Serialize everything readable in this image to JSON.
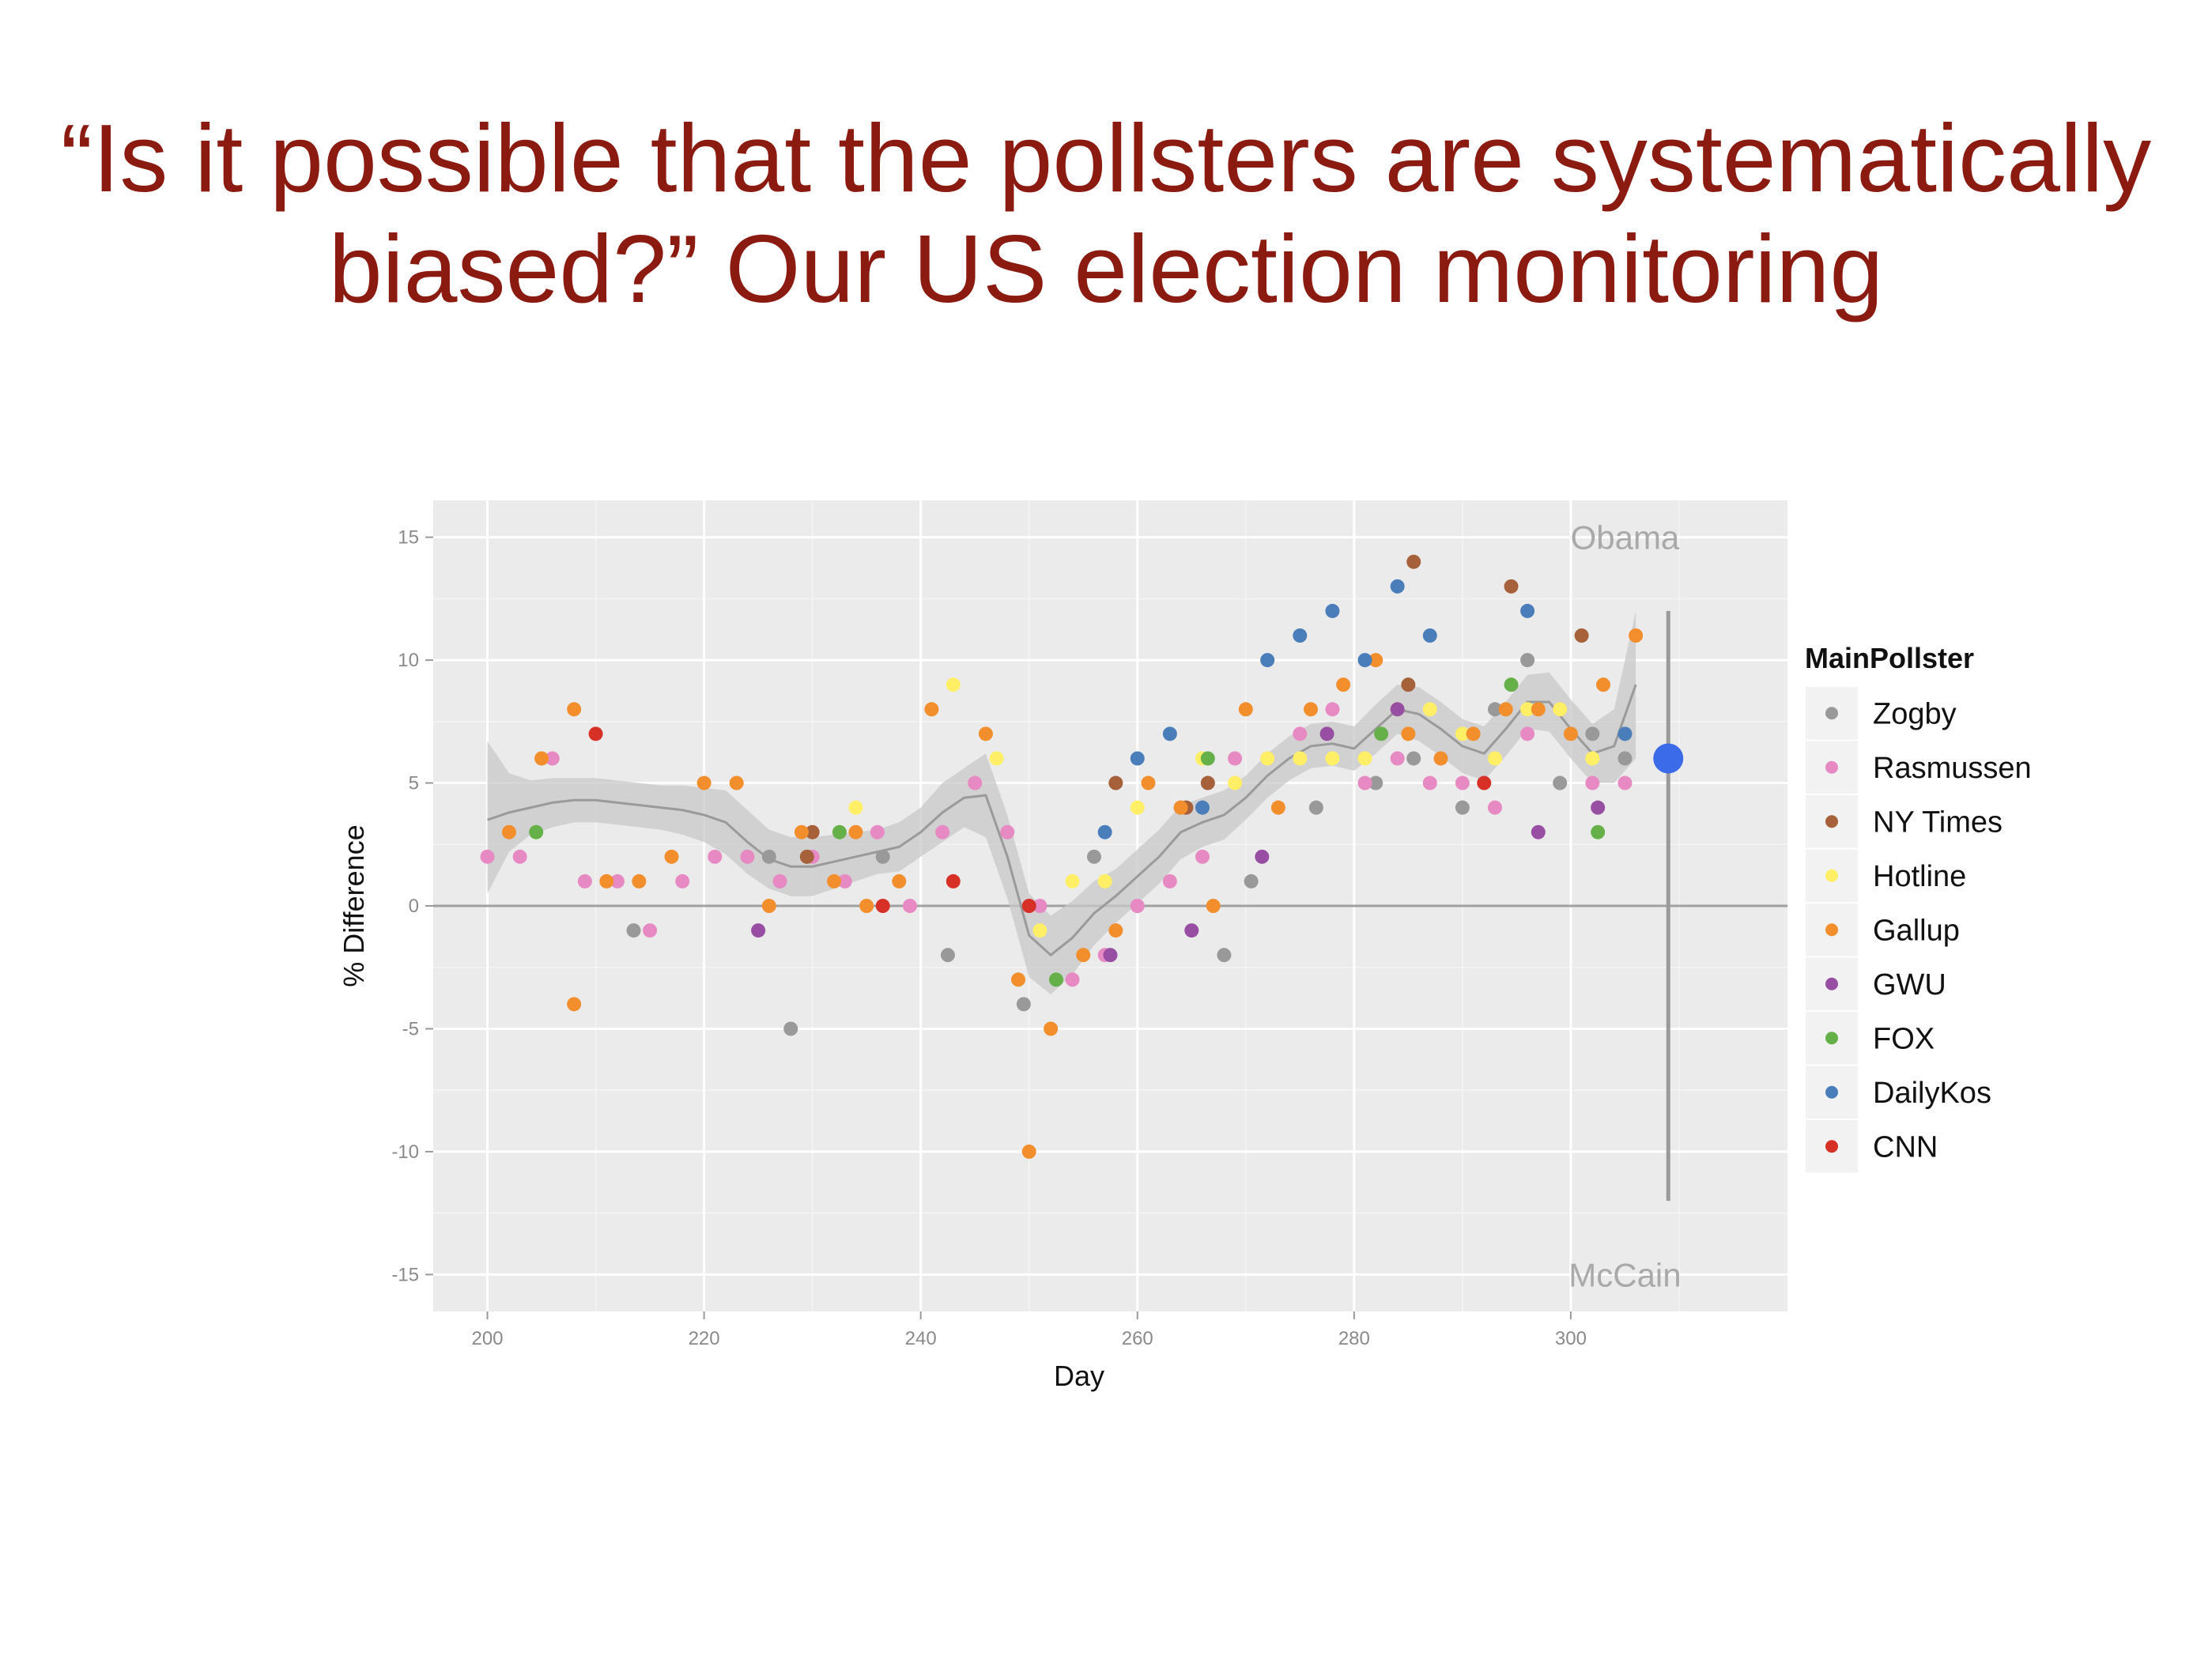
{
  "slide": {
    "title_line1": "“Is it possible that the pollsters are systematically",
    "title_line2": "biased?” Our US election monitoring"
  },
  "chart_data": {
    "type": "scatter",
    "xlabel": "Day",
    "ylabel": "% Difference",
    "xlim": [
      195,
      320
    ],
    "ylim": [
      -16.5,
      16.5
    ],
    "xticks": [
      200,
      220,
      240,
      260,
      280,
      300
    ],
    "yticks": [
      15,
      10,
      5,
      0,
      -5,
      -10,
      -15
    ],
    "grid": true,
    "legend_title": "MainPollster",
    "legend_position": "right",
    "annotations": [
      {
        "text": "Obama",
        "x": 305,
        "y": 15
      },
      {
        "text": "McCain",
        "x": 305,
        "y": -15
      }
    ],
    "series": [
      {
        "name": "Zogby",
        "color": "#999999",
        "points": [
          [
            213.5,
            -1
          ],
          [
            226,
            2
          ],
          [
            228,
            -5
          ],
          [
            236.5,
            2
          ],
          [
            242.5,
            -2
          ],
          [
            249.5,
            -4
          ],
          [
            256,
            2
          ],
          [
            264,
            4
          ],
          [
            268,
            -2
          ],
          [
            270.5,
            1
          ],
          [
            276.5,
            4
          ],
          [
            282,
            5
          ],
          [
            285.5,
            6
          ],
          [
            290,
            4
          ],
          [
            293,
            8
          ],
          [
            296,
            10
          ],
          [
            299,
            5
          ],
          [
            302,
            7
          ],
          [
            305,
            6
          ]
        ]
      },
      {
        "name": "Rasmussen",
        "color": "#e78ac3",
        "points": [
          [
            200,
            2
          ],
          [
            203,
            2
          ],
          [
            206,
            6
          ],
          [
            209,
            1
          ],
          [
            212,
            1
          ],
          [
            215,
            -1
          ],
          [
            218,
            1
          ],
          [
            221,
            2
          ],
          [
            224,
            2
          ],
          [
            227,
            1
          ],
          [
            230,
            2
          ],
          [
            233,
            1
          ],
          [
            236,
            3
          ],
          [
            239,
            0
          ],
          [
            242,
            3
          ],
          [
            245,
            5
          ],
          [
            248,
            3
          ],
          [
            251,
            0
          ],
          [
            254,
            -3
          ],
          [
            257,
            -2
          ],
          [
            260,
            0
          ],
          [
            263,
            1
          ],
          [
            266,
            2
          ],
          [
            269,
            6
          ],
          [
            272,
            6
          ],
          [
            275,
            7
          ],
          [
            278,
            8
          ],
          [
            281,
            5
          ],
          [
            284,
            6
          ],
          [
            287,
            5
          ],
          [
            290,
            5
          ],
          [
            293,
            4
          ],
          [
            296,
            7
          ],
          [
            299,
            8
          ],
          [
            302,
            5
          ],
          [
            305,
            5
          ]
        ]
      },
      {
        "name": "NY Times",
        "color": "#a6603a",
        "points": [
          [
            229.5,
            2
          ],
          [
            230,
            3
          ],
          [
            258,
            5
          ],
          [
            264.5,
            4
          ],
          [
            266.5,
            5
          ],
          [
            285,
            9
          ],
          [
            285.5,
            14
          ],
          [
            294.5,
            13
          ],
          [
            301,
            11
          ]
        ]
      },
      {
        "name": "Hotline",
        "color": "#ffef66",
        "points": [
          [
            234,
            4
          ],
          [
            243,
            9
          ],
          [
            247,
            6
          ],
          [
            251,
            -1
          ],
          [
            254,
            1
          ],
          [
            257,
            1
          ],
          [
            260,
            4
          ],
          [
            266,
            6
          ],
          [
            269,
            5
          ],
          [
            272,
            6
          ],
          [
            275,
            6
          ],
          [
            278,
            6
          ],
          [
            281,
            6
          ],
          [
            284,
            8
          ],
          [
            287,
            8
          ],
          [
            290,
            7
          ],
          [
            293,
            6
          ],
          [
            296,
            8
          ],
          [
            299,
            8
          ],
          [
            302,
            6
          ]
        ]
      },
      {
        "name": "Gallup",
        "color": "#f28e2b",
        "points": [
          [
            202,
            3
          ],
          [
            205,
            6
          ],
          [
            208,
            8
          ],
          [
            208,
            -4
          ],
          [
            211,
            1
          ],
          [
            214,
            1
          ],
          [
            217,
            2
          ],
          [
            220,
            5
          ],
          [
            223,
            5
          ],
          [
            226,
            0
          ],
          [
            229,
            3
          ],
          [
            232,
            1
          ],
          [
            234,
            3
          ],
          [
            235,
            0
          ],
          [
            238,
            1
          ],
          [
            241,
            8
          ],
          [
            246,
            7
          ],
          [
            249,
            -3
          ],
          [
            250,
            -10
          ],
          [
            252,
            -5
          ],
          [
            255,
            -2
          ],
          [
            258,
            -1
          ],
          [
            261,
            5
          ],
          [
            264,
            4
          ],
          [
            267,
            0
          ],
          [
            270,
            8
          ],
          [
            273,
            4
          ],
          [
            276,
            8
          ],
          [
            279,
            9
          ],
          [
            282,
            10
          ],
          [
            285,
            7
          ],
          [
            288,
            6
          ],
          [
            291,
            7
          ],
          [
            294,
            8
          ],
          [
            297,
            8
          ],
          [
            300,
            7
          ],
          [
            303,
            9
          ],
          [
            306,
            11
          ]
        ]
      },
      {
        "name": "GWU",
        "color": "#984ea3",
        "points": [
          [
            225,
            -1
          ],
          [
            257.5,
            -2
          ],
          [
            265,
            -1
          ],
          [
            271.5,
            2
          ],
          [
            277.5,
            7
          ],
          [
            284,
            8
          ],
          [
            297,
            3
          ],
          [
            302.5,
            4
          ]
        ]
      },
      {
        "name": "FOX",
        "color": "#66b04a",
        "points": [
          [
            204.5,
            3
          ],
          [
            232.5,
            3
          ],
          [
            252.5,
            -3
          ],
          [
            266.5,
            6
          ],
          [
            282.5,
            7
          ],
          [
            294.5,
            9
          ],
          [
            302.5,
            3
          ]
        ]
      },
      {
        "name": "DailyKos",
        "color": "#4a7ebb",
        "points": [
          [
            257,
            3
          ],
          [
            260,
            6
          ],
          [
            263,
            7
          ],
          [
            266,
            4
          ],
          [
            272,
            10
          ],
          [
            275,
            11
          ],
          [
            278,
            12
          ],
          [
            281,
            10
          ],
          [
            284,
            13
          ],
          [
            287,
            11
          ],
          [
            296,
            12
          ],
          [
            305,
            7
          ]
        ]
      },
      {
        "name": "CNN",
        "color": "#d73027",
        "points": [
          [
            210,
            7
          ],
          [
            236.5,
            0
          ],
          [
            243,
            1
          ],
          [
            250,
            0
          ],
          [
            292,
            5
          ]
        ]
      }
    ],
    "smooth_line": {
      "color": "#9a9a9a",
      "x": [
        200,
        202,
        204,
        206,
        208,
        210,
        212,
        214,
        216,
        218,
        220,
        222,
        224,
        226,
        228,
        230,
        232,
        234,
        236,
        238,
        240,
        242,
        244,
        246,
        248,
        250,
        252,
        254,
        256,
        258,
        260,
        262,
        264,
        266,
        268,
        270,
        272,
        274,
        276,
        278,
        280,
        282,
        284,
        286,
        288,
        290,
        292,
        294,
        296,
        298,
        300,
        302,
        304,
        306
      ],
      "y": [
        3.5,
        3.8,
        4.0,
        4.2,
        4.3,
        4.3,
        4.2,
        4.1,
        4.0,
        3.9,
        3.7,
        3.4,
        2.6,
        1.9,
        1.6,
        1.6,
        1.8,
        2.0,
        2.2,
        2.4,
        3.0,
        3.8,
        4.4,
        4.5,
        2.0,
        -1.2,
        -2.0,
        -1.3,
        -0.3,
        0.4,
        1.2,
        2.0,
        3.0,
        3.4,
        3.7,
        4.4,
        5.3,
        6.0,
        6.5,
        6.6,
        6.4,
        7.2,
        8.0,
        7.8,
        7.2,
        6.5,
        6.2,
        7.2,
        8.3,
        8.3,
        7.2,
        6.2,
        6.5,
        9.0
      ],
      "ci_low": [
        0.5,
        2.2,
        2.9,
        3.2,
        3.4,
        3.4,
        3.3,
        3.2,
        3.1,
        2.9,
        2.6,
        2.1,
        1.3,
        0.7,
        0.4,
        0.4,
        0.7,
        1.0,
        1.3,
        1.4,
        2.0,
        2.6,
        3.2,
        2.8,
        0.3,
        -2.9,
        -3.6,
        -2.8,
        -1.6,
        -0.7,
        0.1,
        0.9,
        1.9,
        2.4,
        2.7,
        3.5,
        4.4,
        5.1,
        5.6,
        5.7,
        5.5,
        6.2,
        7.0,
        6.7,
        6.1,
        5.4,
        5.1,
        6.1,
        7.2,
        7.1,
        6.0,
        5.0,
        5.0,
        6.0
      ],
      "ci_high": [
        6.7,
        5.4,
        5.1,
        5.2,
        5.2,
        5.2,
        5.1,
        5.0,
        4.9,
        4.9,
        4.8,
        4.7,
        3.9,
        3.1,
        2.8,
        2.8,
        2.9,
        3.0,
        3.1,
        3.4,
        4.0,
        5.0,
        5.6,
        6.2,
        3.7,
        0.5,
        -0.4,
        0.2,
        1.0,
        1.5,
        2.3,
        3.1,
        4.1,
        4.4,
        4.7,
        5.3,
        6.2,
        6.9,
        7.4,
        7.5,
        7.3,
        8.2,
        9.0,
        8.9,
        8.3,
        7.6,
        7.3,
        8.3,
        9.4,
        9.5,
        8.4,
        7.4,
        8.0,
        12.0
      ]
    },
    "prediction": {
      "x": 309,
      "y": 6,
      "low": -12,
      "high": 12,
      "color": "#3b6be8",
      "range_color": "#9a9a9a"
    }
  }
}
